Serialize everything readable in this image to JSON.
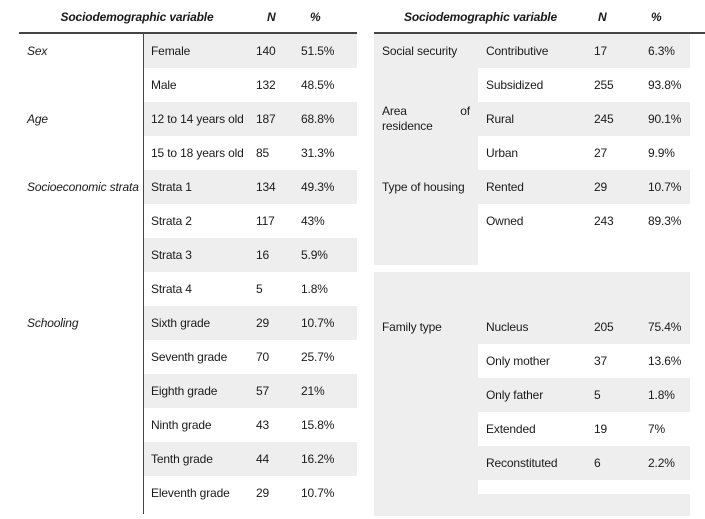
{
  "colors": {
    "background": "#ffffff",
    "row_shade": "#eeeeee",
    "rule": "#454545",
    "text": "#1a1a1a"
  },
  "left_table": {
    "header": {
      "variable": "Sociodemographic variable",
      "n": "N",
      "pct": "%"
    },
    "rows": [
      {
        "variable": "Sex",
        "category": "Female",
        "n": "140",
        "pct": "51.5%"
      },
      {
        "variable": "",
        "category": "Male",
        "n": "132",
        "pct": "48.5%"
      },
      {
        "variable": "Age",
        "category": "12 to 14 years old",
        "n": "187",
        "pct": "68.8%"
      },
      {
        "variable": "",
        "category": "15 to 18 years old",
        "n": "85",
        "pct": "31.3%"
      },
      {
        "variable": "Socioeconomic strata",
        "category": "Strata 1",
        "n": "134",
        "pct": "49.3%"
      },
      {
        "variable": "",
        "category": "Strata 2",
        "n": "117",
        "pct": "43%"
      },
      {
        "variable": "",
        "category": "Strata 3",
        "n": "16",
        "pct": "5.9%"
      },
      {
        "variable": "",
        "category": "Strata 4",
        "n": "5",
        "pct": "1.8%"
      },
      {
        "variable": "Schooling",
        "category": "Sixth grade",
        "n": "29",
        "pct": "10.7%"
      },
      {
        "variable": "",
        "category": "Seventh grade",
        "n": "70",
        "pct": "25.7%"
      },
      {
        "variable": "",
        "category": "Eighth grade",
        "n": "57",
        "pct": "21%"
      },
      {
        "variable": "",
        "category": "Ninth grade",
        "n": "43",
        "pct": "15.8%"
      },
      {
        "variable": "",
        "category": "Tenth grade",
        "n": "44",
        "pct": "16.2%"
      },
      {
        "variable": "",
        "category": "Eleventh grade",
        "n": "29",
        "pct": "10.7%"
      }
    ]
  },
  "right_table": {
    "header": {
      "variable": "Sociodemographic variable",
      "n": "N",
      "pct": "%"
    },
    "area_label": {
      "line1_left": "Area",
      "line1_right": "of",
      "line2": "residence"
    },
    "rows": [
      {
        "variable": "Social security",
        "category": "Contributive",
        "n": "17",
        "pct": "6.3%"
      },
      {
        "variable": "",
        "category": "Subsidized",
        "n": "255",
        "pct": "93.8%"
      },
      {
        "variable": "Area of residence",
        "category": "Rural",
        "n": "245",
        "pct": "90.1%"
      },
      {
        "variable": "",
        "category": "Urban",
        "n": "27",
        "pct": "9.9%"
      },
      {
        "variable": "Type of housing",
        "category": "Rented",
        "n": "29",
        "pct": "10.7%"
      },
      {
        "variable": "",
        "category": "Owned",
        "n": "243",
        "pct": "89.3%"
      },
      {
        "variable": "Family type",
        "category": "Nucleus",
        "n": "205",
        "pct": "75.4%"
      },
      {
        "variable": "",
        "category": "Only mother",
        "n": "37",
        "pct": "13.6%"
      },
      {
        "variable": "",
        "category": "Only father",
        "n": "5",
        "pct": "1.8%"
      },
      {
        "variable": "",
        "category": "Extended",
        "n": "19",
        "pct": "7%"
      },
      {
        "variable": "",
        "category": "Reconstituted",
        "n": "6",
        "pct": "2.2%"
      }
    ]
  }
}
